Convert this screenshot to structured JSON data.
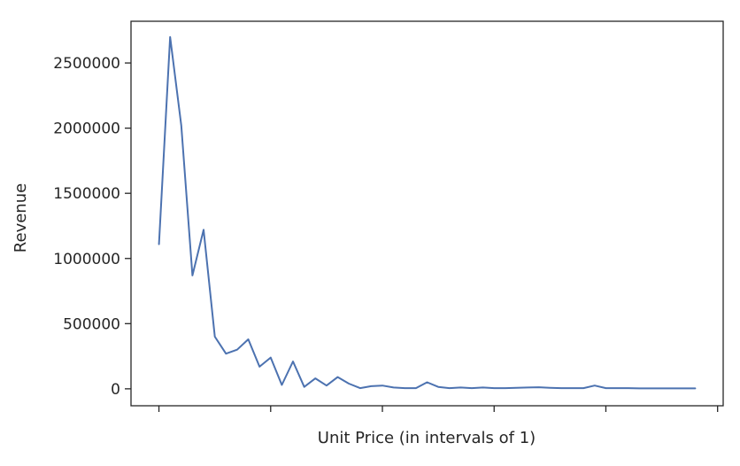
{
  "chart_data": {
    "type": "line",
    "title": "",
    "xlabel": "Unit Price (in intervals of 1)",
    "ylabel": "Revenue",
    "x_tick_labels": [
      "",
      "",
      "",
      "",
      "",
      ""
    ],
    "y_ticks": [
      0,
      500000,
      1000000,
      1500000,
      2000000,
      2500000
    ],
    "y_tick_labels": [
      "0",
      "500000",
      "1000000",
      "1500000",
      "2000000",
      "2500000"
    ],
    "ylim": [
      -130000,
      2820000
    ],
    "xlim": [
      -2.5,
      50.5
    ],
    "grid": false,
    "line_color": "#4c72b0",
    "series": [
      {
        "x": [
          0,
          1,
          2,
          3,
          4,
          5,
          6,
          7,
          8,
          9,
          10,
          11,
          12,
          13,
          14,
          15,
          16,
          17,
          18,
          19,
          20,
          21,
          22,
          23,
          24,
          25,
          26,
          27,
          28,
          29,
          30,
          31,
          32,
          33,
          34,
          35,
          36,
          37,
          38,
          39,
          40,
          41,
          42,
          43,
          44,
          45,
          46,
          47,
          48
        ],
        "values": [
          1110000,
          2700000,
          2020000,
          870000,
          1220000,
          400000,
          270000,
          300000,
          380000,
          170000,
          240000,
          30000,
          210000,
          15000,
          80000,
          25000,
          90000,
          40000,
          5000,
          20000,
          25000,
          10000,
          5000,
          5000,
          50000,
          15000,
          5000,
          10000,
          5000,
          10000,
          5000,
          5000,
          8000,
          10000,
          12000,
          8000,
          5000,
          5000,
          5000,
          25000,
          5000,
          5000,
          5000,
          3000,
          3000,
          3000,
          3000,
          3000,
          3000
        ]
      }
    ]
  }
}
